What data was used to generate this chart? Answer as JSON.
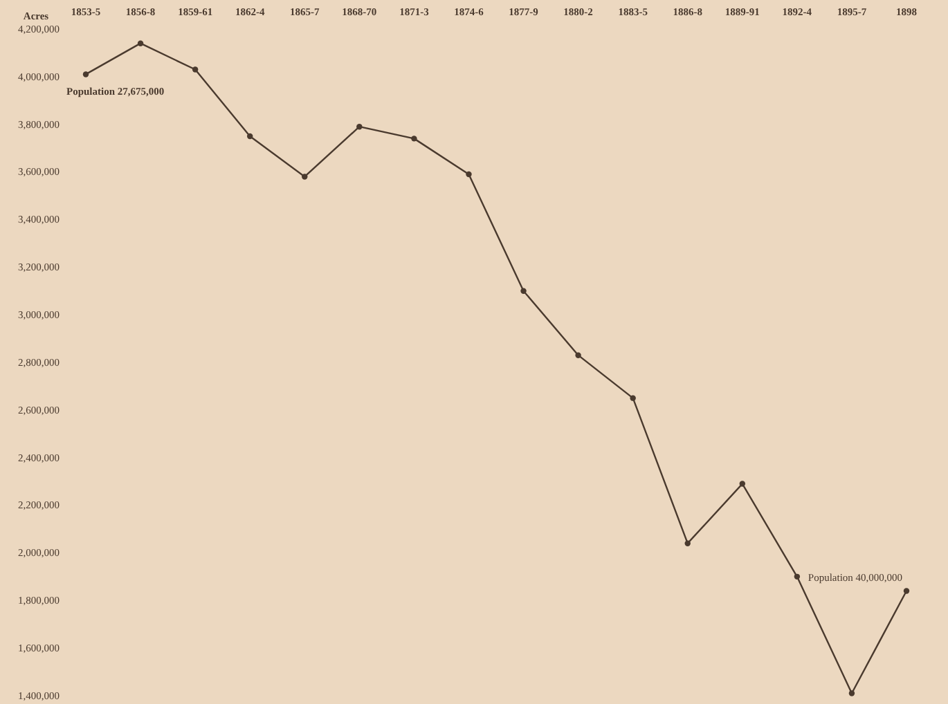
{
  "chart_data": {
    "type": "line",
    "ylabel": "Acres",
    "categories": [
      "1853-5",
      "1856-8",
      "1859-61",
      "1862-4",
      "1865-7",
      "1868-70",
      "1871-3",
      "1874-6",
      "1877-9",
      "1880-2",
      "1883-5",
      "1886-8",
      "1889-91",
      "1892-4",
      "1895-7",
      "1898"
    ],
    "series": [
      {
        "color": "#4a3a2e",
        "values": [
          4010000,
          4140000,
          4030000,
          3750000,
          3580000,
          3790000,
          3740000,
          3590000,
          3100000,
          2830000,
          2650000,
          2040000,
          2290000,
          1900000,
          1410000,
          1840000
        ]
      }
    ],
    "ylim": [
      1400000,
      4200000
    ],
    "yticks": [
      {
        "value": 1400000,
        "label": "1,400,000"
      },
      {
        "value": 1600000,
        "label": "1,600,000"
      },
      {
        "value": 1800000,
        "label": "1,800,000"
      },
      {
        "value": 2000000,
        "label": "2,000,000"
      },
      {
        "value": 2200000,
        "label": "2,200,000"
      },
      {
        "value": 2400000,
        "label": "2,400,000"
      },
      {
        "value": 2600000,
        "label": "2,600,000"
      },
      {
        "value": 2800000,
        "label": "2,800,000"
      },
      {
        "value": 3000000,
        "label": "3,000,000"
      },
      {
        "value": 3200000,
        "label": "3,200,000"
      },
      {
        "value": 3400000,
        "label": "3,400,000"
      },
      {
        "value": 3600000,
        "label": "3,600,000"
      },
      {
        "value": 3800000,
        "label": "3,800,000"
      },
      {
        "value": 4000000,
        "label": "4,000,000"
      },
      {
        "value": 4200000,
        "label": "4,200,000"
      }
    ],
    "marker": "circle",
    "line_style": "solid",
    "grid": false,
    "annotations": [
      {
        "text": "Population 27,675,000",
        "x": "1853-5",
        "y": 4010000
      },
      {
        "text": "Population 40,000,000",
        "x": "1892-4",
        "y": 1900000
      }
    ]
  }
}
